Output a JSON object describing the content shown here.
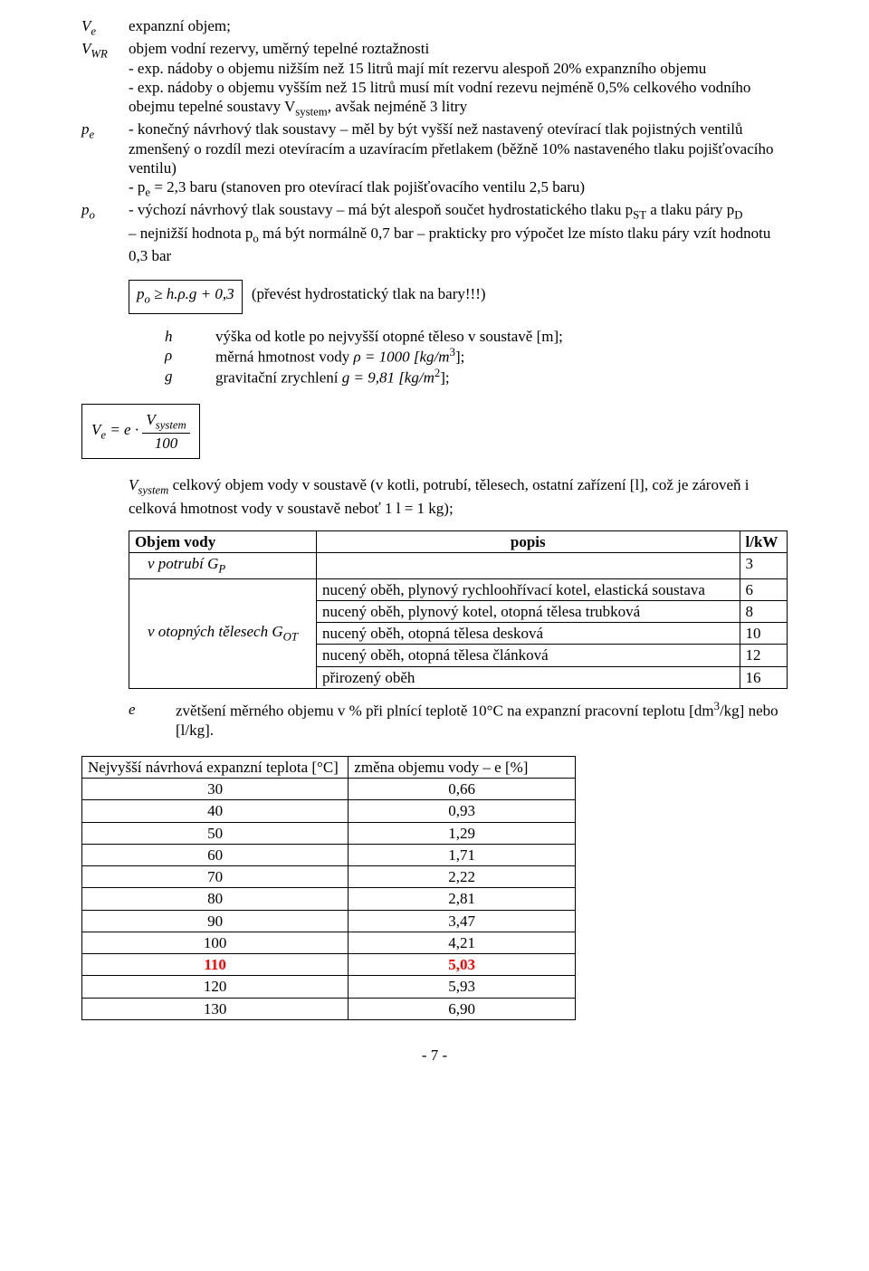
{
  "defs": {
    "ve_sym": "V",
    "ve_sub": "e",
    "ve_text": "expanzní objem;",
    "vwr_sym": "V",
    "vwr_sub": "WR",
    "vwr_text": "objem vodní rezervy, uměrný tepelné roztažnosti",
    "vwr_b1": "- exp. nádoby o objemu nižším než 15 litrů mají mít rezervu alespoň 20% expanzního objemu",
    "vwr_b2_pre": "- exp. nádoby o objemu vyšším než 15 litrů musí mít vodní rezevu nejméně 0,5% celkového vodního obejmu tepelné soustavy V",
    "vwr_b2_sub": "system",
    "vwr_b2_post": ", avšak nejméně 3 litry",
    "pe_sym": "p",
    "pe_sub": "e",
    "pe_text": "- konečný návrhový tlak soustavy – měl by být vyšší než nastavený otevírací tlak pojistných ventilů zmenšený o rozdíl mezi otevíracím a uzavíracím přetlakem (běžně 10% nastaveného tlaku pojišťovacího ventilu)",
    "pe_b1_pre": "- p",
    "pe_b1_sub": "e",
    "pe_b1_post": " =  2,3 baru (stanoven pro otevírací tlak pojišťovacího ventilu 2,5 baru)",
    "po_sym": "p",
    "po_sub": "o",
    "po_text_pre": "- výchozí návrhový tlak soustavy – má být alespoň součet hydrostatického tlaku p",
    "po_text_sub1": "ST",
    "po_text_mid": " a tlaku páry p",
    "po_text_sub2": "D",
    "po_b1_pre": "– nejnižší hodnota p",
    "po_b1_sub": "o",
    "po_b1_post": " má být normálně 0,7 bar – prakticky pro výpočet lze místo tlaku páry vzít hodnotu 0,3 bar"
  },
  "formula1": {
    "lhs": "p",
    "lhs_sub": "o",
    "rel": " ≥ ",
    "rhs": "h.ρ.g + 0,3",
    "note": "(převést hydrostatický tlak na bary!!!)"
  },
  "params": {
    "h_sym": "h",
    "h_text": "výška od kotle po nejvyšší otopné těleso v soustavě [m];",
    "rho_sym": "ρ",
    "rho_text_pre": "měrná hmotnost vody ",
    "rho_eq": "ρ = 1000 [kg/m",
    "rho_exp": "3",
    "rho_post": "];",
    "g_sym": "g",
    "g_text_pre": "gravitační zrychlení ",
    "g_eq": "g = 9,81 [kg/m",
    "g_exp": "2",
    "g_post": "];"
  },
  "formula2": {
    "Ve": "V",
    "Ve_sub": "e",
    "eq": " = e · ",
    "num": "V",
    "num_sub": "system",
    "den": "100"
  },
  "vsystem": {
    "sym": "V",
    "sub": "system",
    "text": " celkový objem vody v soustavě (v kotli, potrubí, tělesech, ostatní zařízení [l], což je zároveň i celková hmotnost vody v soustavě neboť 1 l = 1 kg);"
  },
  "water_table": {
    "h1": "Objem vody",
    "h2": "popis",
    "h3": "l/kW",
    "r1c1_pre": "v potrubí G",
    "r1c1_sub": "P",
    "r1c3": "3",
    "rowspan_label_pre": "v otopných tělesech G",
    "rowspan_label_sub": "OT",
    "rows": [
      {
        "desc": "nucený oběh, plynový rychloohřívací kotel, elastická soustava",
        "val": "6"
      },
      {
        "desc": "nucený oběh, plynový kotel, otopná tělesa trubková",
        "val": "8"
      },
      {
        "desc": "nucený oběh, otopná tělesa desková",
        "val": "10"
      },
      {
        "desc": "nucený oběh, otopná tělesa článková",
        "val": "12"
      },
      {
        "desc": "přirozený oběh",
        "val": "16"
      }
    ]
  },
  "e_def": {
    "sym": "e",
    "text_pre": "zvětšení měrného objemu v % při plnící teplotě 10°C na expanzní pracovní teplotu [dm",
    "exp": "3",
    "text_post": "/kg] nebo [l/kg]."
  },
  "temp_table": {
    "h1": "Nejvyšší návrhová expanzní teplota [°C]",
    "h2": "změna objemu vody – e [%]",
    "rows": [
      {
        "t": "30",
        "e": "0,66",
        "red": false
      },
      {
        "t": "40",
        "e": "0,93",
        "red": false
      },
      {
        "t": "50",
        "e": "1,29",
        "red": false
      },
      {
        "t": "60",
        "e": "1,71",
        "red": false
      },
      {
        "t": "70",
        "e": "2,22",
        "red": false
      },
      {
        "t": "80",
        "e": "2,81",
        "red": false
      },
      {
        "t": "90",
        "e": "3,47",
        "red": false
      },
      {
        "t": "100",
        "e": "4,21",
        "red": false
      },
      {
        "t": "110",
        "e": "5,03",
        "red": true
      },
      {
        "t": "120",
        "e": "5,93",
        "red": false
      },
      {
        "t": "130",
        "e": "6,90",
        "red": false
      }
    ]
  },
  "page_number": "- 7 -",
  "colors": {
    "text": "#000000",
    "accent_red": "#ff0000",
    "background": "#ffffff",
    "border": "#000000"
  }
}
